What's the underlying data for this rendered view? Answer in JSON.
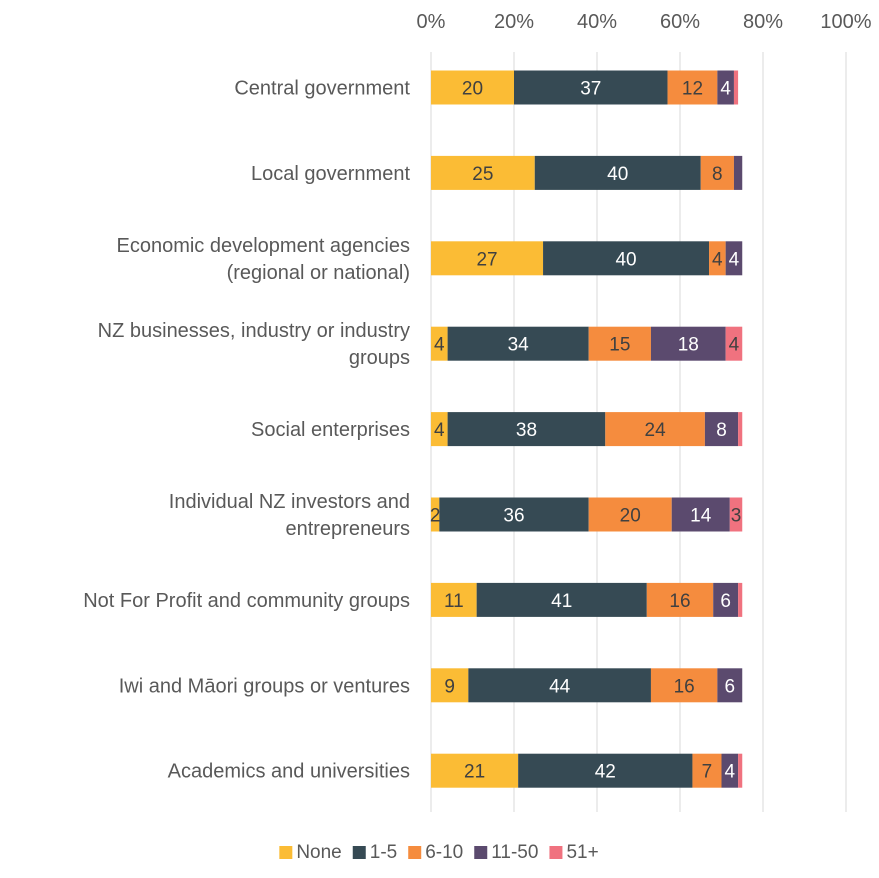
{
  "chart_data": {
    "type": "bar",
    "orientation": "horizontal",
    "stacked": true,
    "percent_stacked": true,
    "xlim": [
      0,
      100
    ],
    "x_ticks": [
      "0%",
      "20%",
      "40%",
      "60%",
      "80%",
      "100%"
    ],
    "x_tick_values": [
      0,
      20,
      40,
      60,
      80,
      100
    ],
    "x_axis_position": "top",
    "grid": true,
    "legend_position": "bottom",
    "categories": [
      [
        "Central government"
      ],
      [
        "Local government"
      ],
      [
        "Economic development agencies",
        "(regional or national)"
      ],
      [
        "NZ businesses, industry or industry",
        "groups"
      ],
      [
        "Social enterprises"
      ],
      [
        "Individual NZ investors and",
        "entrepreneurs"
      ],
      [
        "Not For Profit and community groups"
      ],
      [
        "Iwi and Māori groups or ventures"
      ],
      [
        "Academics and universities"
      ]
    ],
    "series": [
      {
        "name": "None",
        "color": "#fbbc35",
        "label_color": "#404040",
        "values": [
          20,
          25,
          27,
          4,
          4,
          2,
          11,
          9,
          21
        ],
        "labels": [
          "20",
          "25",
          "27",
          "4",
          "4",
          "2",
          "11",
          "9",
          "21"
        ]
      },
      {
        "name": "1-5",
        "color": "#364a54",
        "label_color": "#ffffff",
        "values": [
          37,
          40,
          40,
          34,
          38,
          36,
          41,
          44,
          42
        ],
        "labels": [
          "37",
          "40",
          "40",
          "34",
          "38",
          "36",
          "41",
          "44",
          "42"
        ]
      },
      {
        "name": "6-10",
        "color": "#f58c3e",
        "label_color": "#404040",
        "values": [
          12,
          8,
          4,
          15,
          24,
          20,
          16,
          16,
          7
        ],
        "labels": [
          "12",
          "8",
          "4",
          "15",
          "24",
          "20",
          "16",
          "16",
          "7"
        ]
      },
      {
        "name": "11-50",
        "color": "#5b4a6e",
        "label_color": "#ffffff",
        "values": [
          4,
          2,
          4,
          18,
          8,
          14,
          6,
          6,
          4
        ],
        "labels": [
          "4",
          "",
          "4",
          "18",
          "8",
          "14",
          "6",
          "6",
          "4"
        ]
      },
      {
        "name": "51+",
        "color": "#f0727f",
        "label_color": "#404040",
        "values": [
          1,
          0,
          0,
          4,
          1,
          3,
          1,
          0,
          1
        ],
        "labels": [
          "",
          "",
          "",
          "4",
          "",
          "3",
          "",
          "",
          ""
        ]
      }
    ]
  }
}
